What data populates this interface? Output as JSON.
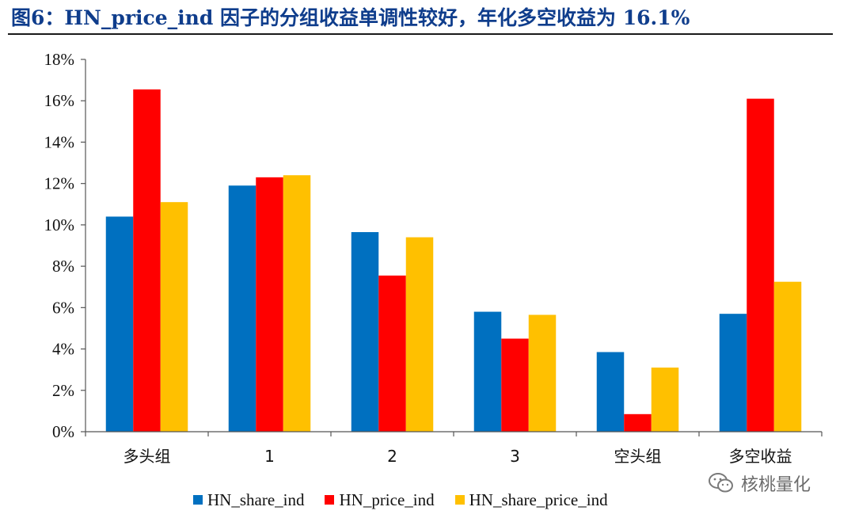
{
  "header": {
    "title": "图6：HN_price_ind 因子的分组收益单调性较好，年化多空收益为 16.1%"
  },
  "colors": {
    "series": [
      "#0070C0",
      "#FF0000",
      "#FFC000"
    ],
    "title": "#0f3d8c"
  },
  "chart_data": {
    "type": "bar",
    "title": "",
    "xlabel": "",
    "ylabel": "",
    "ylim": [
      0,
      18
    ],
    "y_ticks": [
      "0%",
      "2%",
      "4%",
      "6%",
      "8%",
      "10%",
      "12%",
      "14%",
      "16%",
      "18%"
    ],
    "y_tick_values": [
      0,
      2,
      4,
      6,
      8,
      10,
      12,
      14,
      16,
      18
    ],
    "categories": [
      "多头组",
      "1",
      "2",
      "3",
      "空头组",
      "多空收益"
    ],
    "series": [
      {
        "name": "HN_share_ind",
        "values": [
          10.4,
          11.9,
          9.65,
          5.8,
          3.85,
          5.7
        ]
      },
      {
        "name": "HN_price_ind",
        "values": [
          16.55,
          12.3,
          7.55,
          4.5,
          0.85,
          16.1
        ]
      },
      {
        "name": "HN_share_price_ind",
        "values": [
          11.1,
          12.4,
          9.4,
          5.65,
          3.1,
          7.25
        ]
      }
    ],
    "legend_position": "bottom"
  },
  "legend": {
    "items": [
      "HN_share_ind",
      "HN_price_ind",
      "HN_share_price_ind"
    ]
  },
  "watermark": {
    "text": "核桃量化",
    "icon": "wechat-icon"
  }
}
